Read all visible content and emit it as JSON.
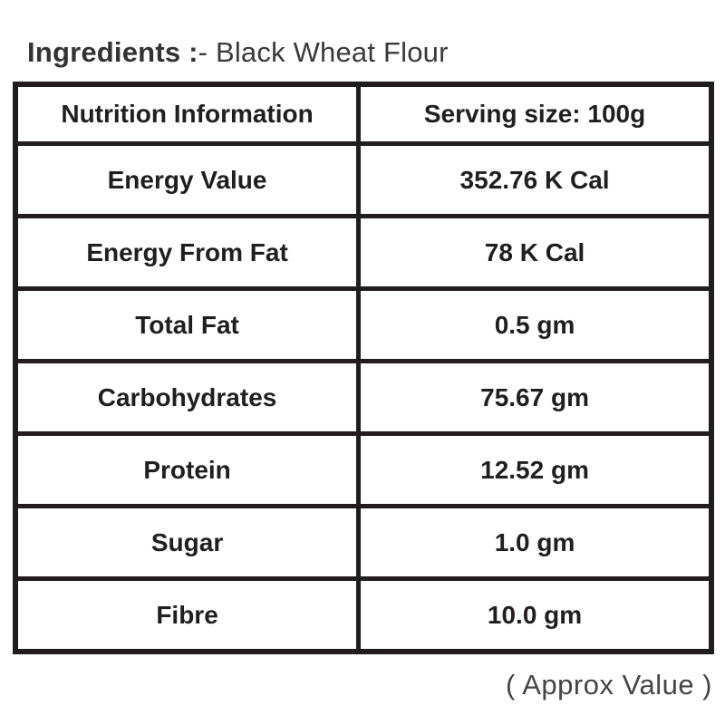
{
  "title": {
    "label_bold": "Ingredients :",
    "label_rest": "- Black Wheat Flour"
  },
  "table": {
    "header": {
      "col1": "Nutrition Information",
      "col2": "Serving size: 100g"
    },
    "rows": [
      {
        "nutrient": "Energy Value",
        "value": "352.76 K Cal"
      },
      {
        "nutrient": "Energy From Fat",
        "value": "78 K Cal"
      },
      {
        "nutrient": "Total Fat",
        "value": "0.5 gm"
      },
      {
        "nutrient": "Carbohydrates",
        "value": "75.67 gm"
      },
      {
        "nutrient": "Protein",
        "value": "12.52 gm"
      },
      {
        "nutrient": "Sugar",
        "value": "1.0 gm"
      },
      {
        "nutrient": "Fibre",
        "value": "10.0 gm"
      }
    ]
  },
  "footnote": "( Approx Value )",
  "colors": {
    "border": "#211d1e",
    "table_text": "#221e1f",
    "title_text": "#3a3a3c",
    "footnote_text": "#454547"
  }
}
